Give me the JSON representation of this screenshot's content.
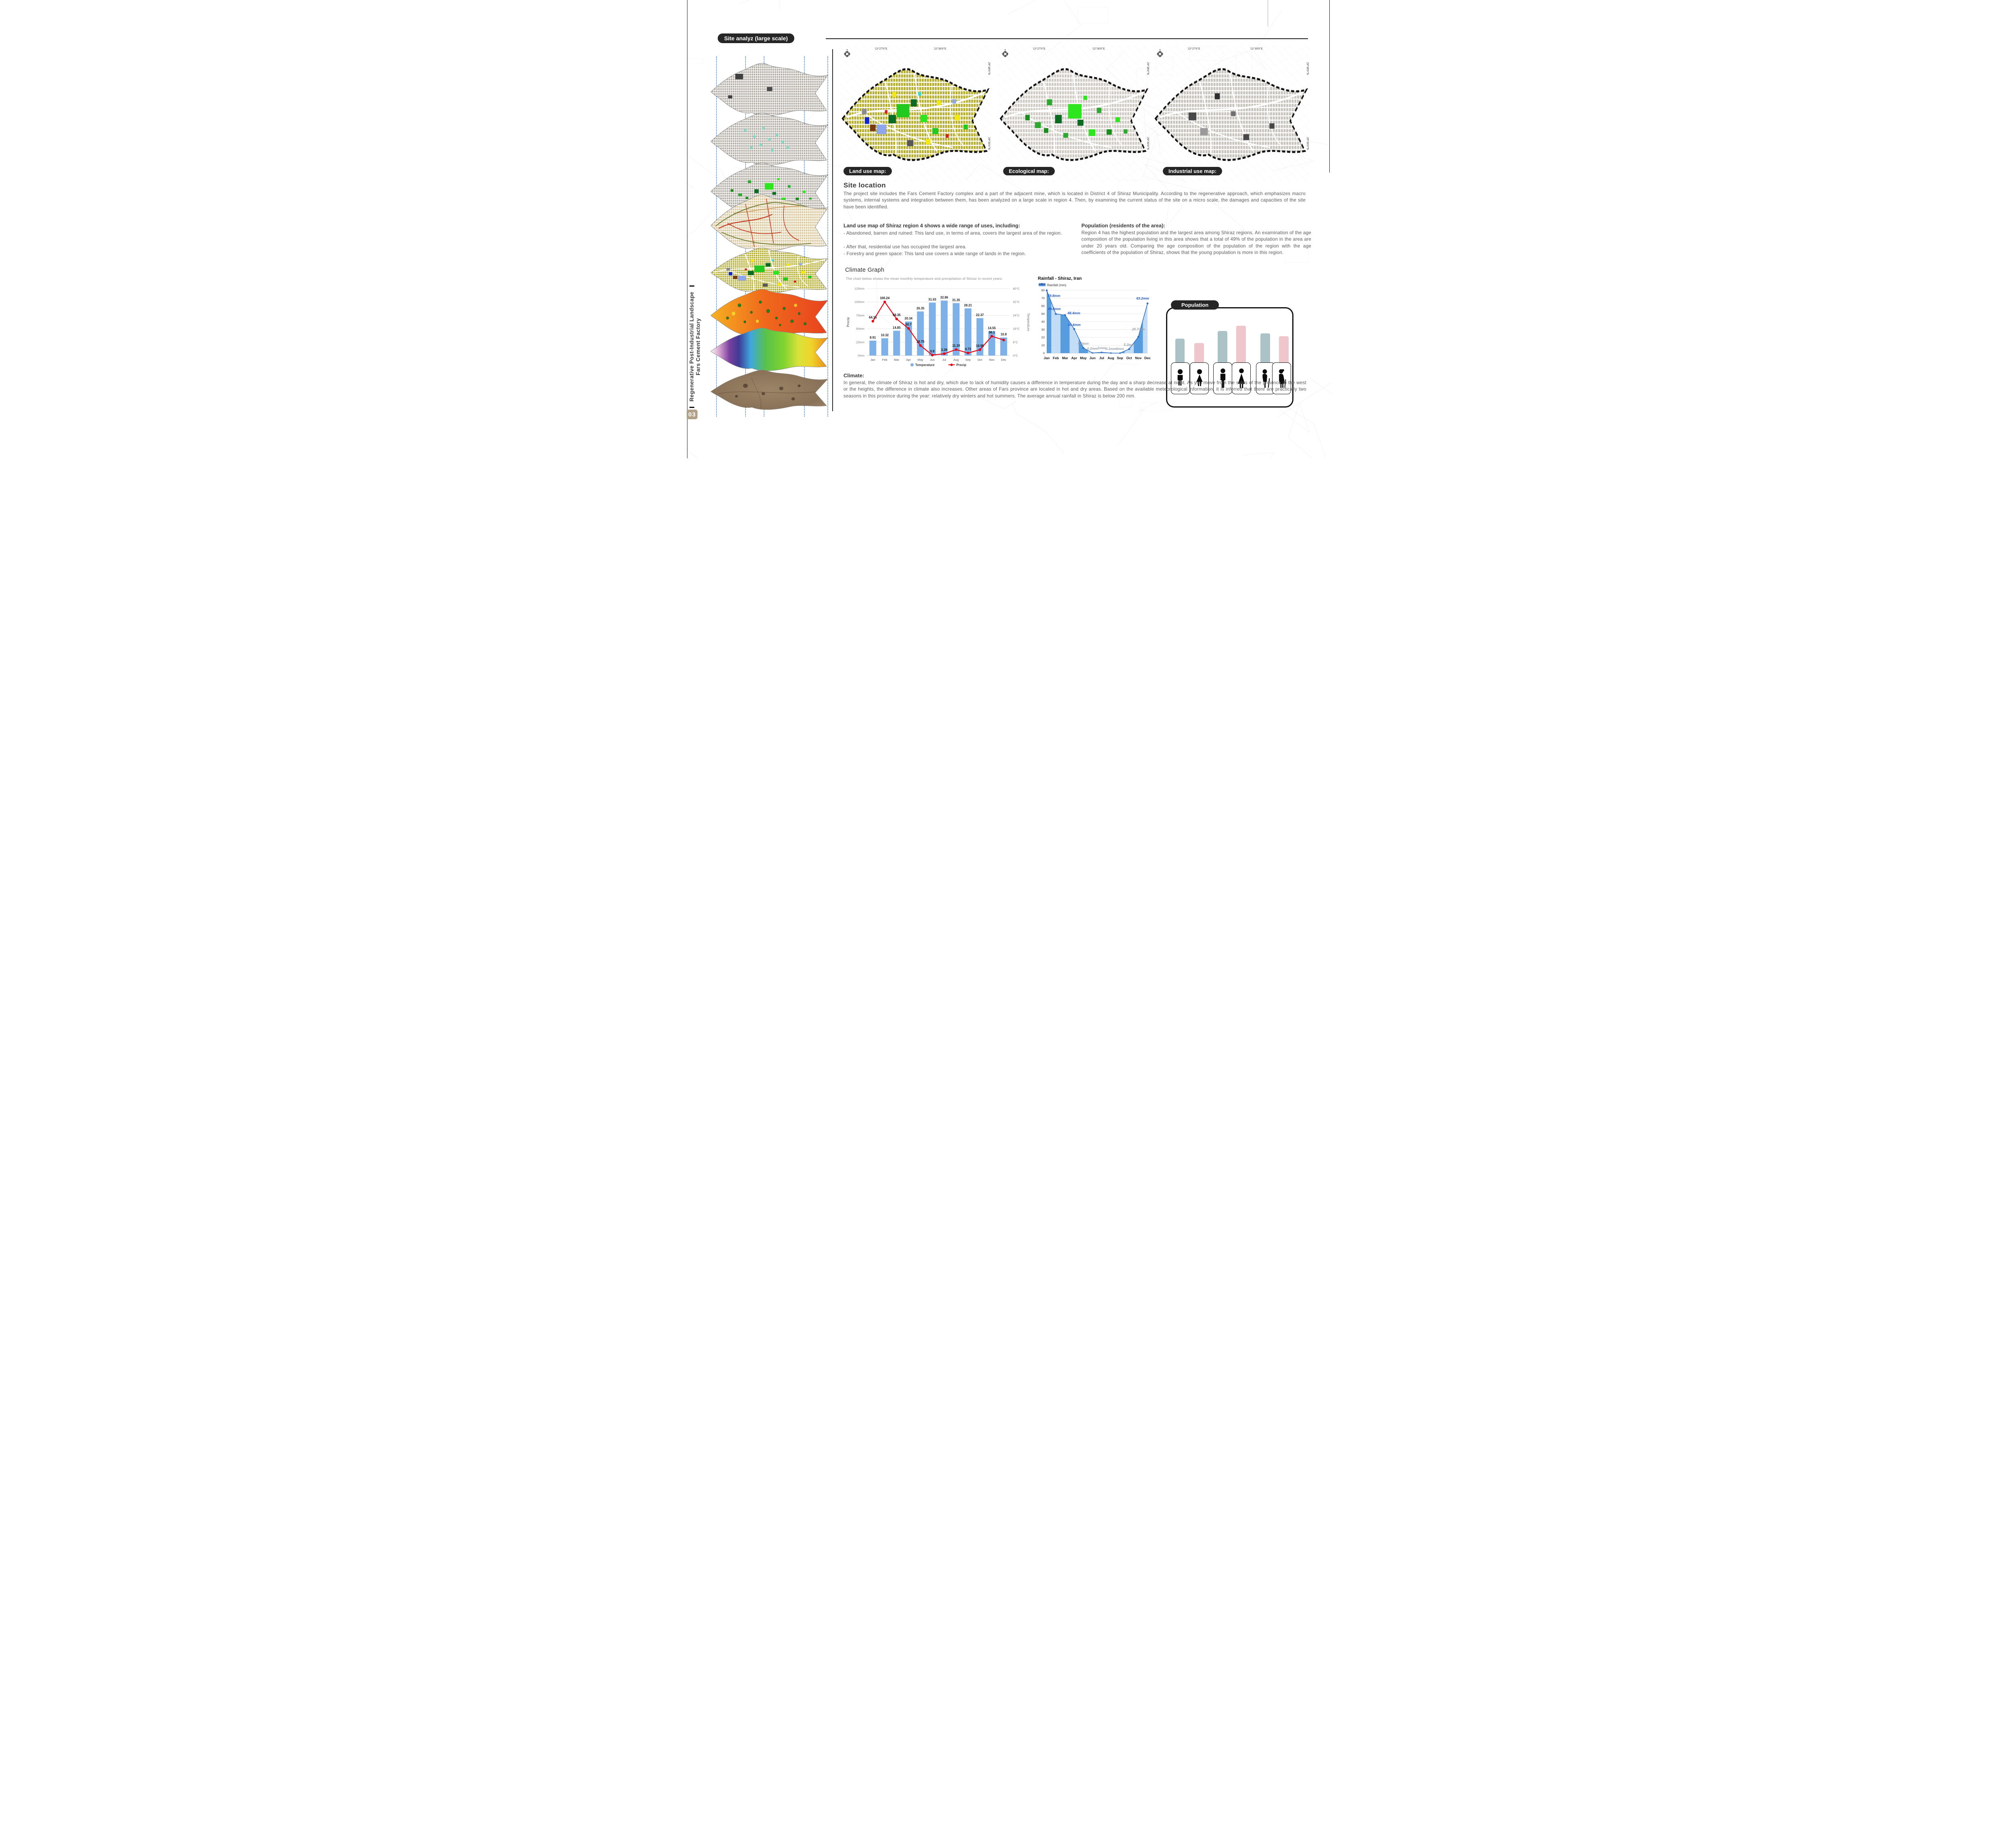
{
  "page": {
    "title_tag": "Site analyz (large scale)",
    "page_number": "03",
    "sidebar_line1": "Regenerative Post-Industrial Landscape",
    "sidebar_line2": "Fars Cement Factory"
  },
  "maps": {
    "land_use_label": "Land use map:",
    "ecological_label": "Ecological map:",
    "industrial_label": "Industrial use map:",
    "coords": {
      "top_left": "52°27'0\"E",
      "top_right": "52°30'0\"E",
      "right_top": "29°38'0\"N",
      "right_bottom": "29°36'0\"N"
    }
  },
  "site_location": {
    "heading": "Site location",
    "body": "The project site includes the Fars Cement Factory complex and a part of the adjacent mine, which is located in District 4 of Shiraz Municipality. According to the regenerative approach, which emphasizes macro systems, internal systems and integration between them, has been analyzed on a large scale in region 4.  Then, by examining the current status of the site on a micro scale, the damages and capacities of the site have been identified."
  },
  "land_use_text": {
    "heading": "Land use map of Shiraz region 4 shows a wide range of uses, including:",
    "bullets": [
      "- Abandoned, barren and ruined: This land use, in terms of area, covers the largest area of the region.",
      "- After that, residential use has occupied the largest area.",
      "- Forestry and green space: This land use covers a wide range of lands in the region."
    ]
  },
  "population_text": {
    "heading": "Population (residents of the area):",
    "body": "Region 4 has the highest population and the largest area among Shiraz regions. An examination of the age composition of the population living in this area shows that a total of 49% of the population in the area are under 20 years old. Comparing the age composition of the population of the region with the age coefficients of the population of Shiraz, shows that the young population is more in this region."
  },
  "climate_text": {
    "heading": "Climate:",
    "body": "In general, the climate of Shiraz is hot and dry, which due to lack of humidity causes a difference in temperature during the day and a sharp decrease at night. As you move from the sides of the province to the west or the heights, the difference in climate also increases. Other areas of Fars province are located in hot and dry areas. Based on the available meteorological information, it is inferred that there are practically two seasons in this province during the year: relatively dry winters and hot summers. The average annual rainfall in Shiraz is below 200 mm."
  },
  "climate_graph": {
    "heading": "Climate Graph",
    "subtitle": "The chart below shows the mean monthly temperature and precipitation of Shiraz in recent years."
  },
  "population_box": {
    "label": "Population"
  },
  "chart_data": [
    {
      "id": "climate-combo",
      "type": "bar+line",
      "categories": [
        "Jan",
        "Feb",
        "Mar",
        "Apr",
        "May",
        "Jun",
        "Jul",
        "Aug",
        "Sep",
        "Oct",
        "Nov",
        "Dec"
      ],
      "series": [
        {
          "name": "Temperature",
          "type": "bar",
          "axis": "right",
          "unit": "°C",
          "color": "#7db1e8",
          "values": [
            8.91,
            10.32,
            14.85,
            20.34,
            26.35,
            31.63,
            32.86,
            31.35,
            28.21,
            22.37,
            14.55,
            10.8
          ]
        },
        {
          "name": "Precip",
          "type": "line",
          "axis": "left",
          "unit": "mm",
          "color": "#e60012",
          "values": [
            64.15,
            100.24,
            68.35,
            50.7,
            18.75,
            0.8,
            3.39,
            11.19,
            4.73,
            10.95,
            36.1,
            29
          ],
          "labels": [
            "64.15",
            "100.24",
            "68.35",
            "50.7",
            "18.75",
            "0.8",
            "3.39",
            "11.19",
            "4.73",
            "10.95",
            "36.1",
            ""
          ]
        }
      ],
      "left_axis": {
        "title": "Precip",
        "ticks": [
          "0mm",
          "25mm",
          "50mm",
          "75mm",
          "100mm",
          "125mm"
        ],
        "max": 125
      },
      "right_axis": {
        "title": "Temperature",
        "ticks": [
          "0°C",
          "8°C",
          "16°C",
          "24°C",
          "32°C",
          "40°C"
        ],
        "max": 40
      },
      "legend": [
        "Temperature",
        "Precip"
      ],
      "grid": true
    },
    {
      "id": "rainfall",
      "type": "area",
      "title": "Rainfall - Shiraz, Iran",
      "legend": "Rainfall (mm)",
      "x": [
        "Jan",
        "Feb",
        "Mar",
        "Apr",
        "May",
        "Jun",
        "Jul",
        "Aug",
        "Sep",
        "Oct",
        "Nov",
        "Dec"
      ],
      "values": [
        79.8,
        49.8,
        48.4,
        30.6,
        6.6,
        0.2,
        1,
        0.1,
        0,
        5.2,
        20.7,
        63.2
      ],
      "labels": [
        "79.8mm",
        "49.8mm",
        "48.4mm",
        "30.6mm",
        "6.6mm",
        "0.2mm",
        "1mm",
        "0.1mm",
        "0mm",
        "5.2mm",
        "20.7mm",
        "63.2mm"
      ],
      "label_emphasis": [
        true,
        true,
        true,
        true,
        false,
        false,
        false,
        false,
        false,
        false,
        false,
        true
      ],
      "ylim": [
        0,
        80
      ],
      "yticks": [
        0,
        10,
        20,
        30,
        40,
        50,
        60,
        70,
        80
      ],
      "colors": {
        "line": "#2f6fbe",
        "area_dark": "#4e97dd",
        "area_light": "#aed1f2"
      }
    },
    {
      "id": "population",
      "type": "bar",
      "title": "Population",
      "categories": [
        "boy",
        "girl",
        "man",
        "woman",
        "elderly-man",
        "elderly-woman"
      ],
      "values": [
        59,
        48,
        78,
        91,
        72,
        65
      ],
      "value_note": "relative bar heights, no numeric axis shown",
      "colors": [
        "#abc2c6",
        "#efc6cc",
        "#abc2c6",
        "#efc6cc",
        "#abc2c6",
        "#efc6cc"
      ]
    }
  ],
  "stack_layers": [
    {
      "name": "urban-fabric-map"
    },
    {
      "name": "landmarks-map"
    },
    {
      "name": "green-space-map"
    },
    {
      "name": "road-network-map"
    },
    {
      "name": "land-use-layer-map"
    },
    {
      "name": "heat-map"
    },
    {
      "name": "gradient-analysis-map"
    },
    {
      "name": "satellite-map"
    }
  ]
}
